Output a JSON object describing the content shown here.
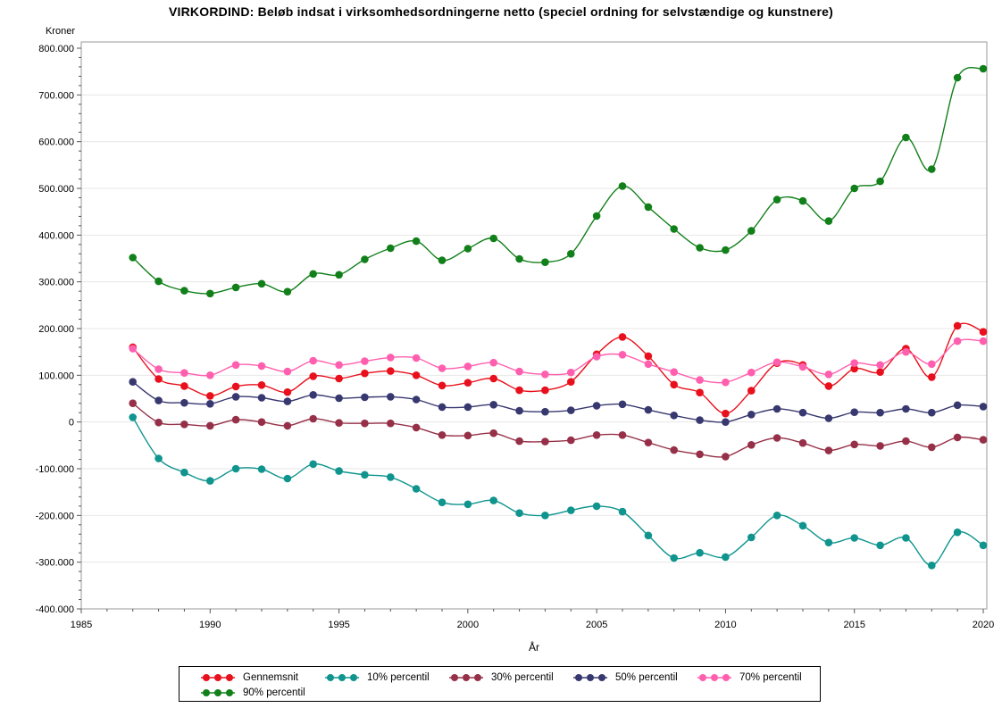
{
  "title": "VIRKORDIND:  Beløb indsat i virksomhedsordningerne netto (speciel ordning for selvstændige og kunstnere)",
  "chart_data": {
    "type": "line",
    "title": "VIRKORDIND:  Beløb indsat i virksomhedsordningerne netto (speciel ordning for selvstændige og kunstnere)",
    "ylabel": "Kroner",
    "xlabel": "År",
    "xlim": [
      1985,
      2020.15
    ],
    "ylim": [
      -400000,
      813000
    ],
    "x_major_ticks": [
      1985,
      1990,
      1995,
      2000,
      2005,
      2010,
      2015,
      2020
    ],
    "x_tick_labels": [
      "1985",
      "1990",
      "1995",
      "2000",
      "2005",
      "2010",
      "2015",
      "2020"
    ],
    "x_minor_step_years": 1,
    "y_major_step": 100000,
    "y_minor_step": 20000,
    "y_tick_labels": [
      "800.000",
      "700.000",
      "600.000",
      "500.000",
      "400.000",
      "300.000",
      "200.000",
      "100.000",
      "0",
      "-100.000",
      "-200.000",
      "-300.000",
      "-400.000"
    ],
    "grid": "horizontal-major",
    "legend_position": "bottom",
    "x": [
      1987,
      1988,
      1989,
      1990,
      1991,
      1992,
      1993,
      1994,
      1995,
      1996,
      1997,
      1998,
      1999,
      2000,
      2001,
      2002,
      2003,
      2004,
      2005,
      2006,
      2007,
      2008,
      2009,
      2010,
      2011,
      2012,
      2013,
      2014,
      2015,
      2016,
      2017,
      2018,
      2019,
      2020
    ],
    "series": [
      {
        "id": "gennemsnit",
        "name": "Gennemsnit",
        "color": "#e8101c",
        "values": [
          160000,
          92000,
          77000,
          56000,
          76000,
          79000,
          64000,
          98000,
          93000,
          104000,
          109000,
          100000,
          78000,
          84000,
          93000,
          68000,
          68000,
          86000,
          145000,
          182000,
          141000,
          80000,
          63000,
          18000,
          67000,
          126000,
          122000,
          77000,
          114000,
          107000,
          157000,
          96000,
          206000,
          193000
        ]
      },
      {
        "id": "p10",
        "name": "10% percentil",
        "color": "#0f948e",
        "values": [
          10000,
          -78000,
          -108000,
          -126000,
          -100000,
          -101000,
          -121000,
          -90000,
          -105000,
          -113000,
          -118000,
          -143000,
          -172000,
          -176000,
          -168000,
          -195000,
          -200000,
          -189000,
          -180000,
          -192000,
          -243000,
          -291000,
          -280000,
          -289000,
          -247000,
          -200000,
          -222000,
          -258000,
          -248000,
          -264000,
          -248000,
          -307000,
          -236000,
          -264000
        ]
      },
      {
        "id": "p30",
        "name": "30% percentil",
        "color": "#963048",
        "values": [
          40000,
          -1000,
          -5000,
          -8000,
          5000,
          0,
          -8000,
          7000,
          -2000,
          -3000,
          -3000,
          -12000,
          -28000,
          -29000,
          -24000,
          -41000,
          -42000,
          -39000,
          -28000,
          -28000,
          -44000,
          -60000,
          -69000,
          -74000,
          -49000,
          -34000,
          -45000,
          -61000,
          -48000,
          -51000,
          -41000,
          -54000,
          -33000,
          -38000
        ]
      },
      {
        "id": "p50",
        "name": "50% percentil",
        "color": "#383870",
        "values": [
          86000,
          46000,
          41000,
          39000,
          54000,
          52000,
          44000,
          58000,
          51000,
          53000,
          54000,
          48000,
          32000,
          32000,
          37000,
          24000,
          22000,
          25000,
          35000,
          38000,
          26000,
          14000,
          4000,
          0,
          16000,
          28000,
          20000,
          8000,
          21000,
          20000,
          28000,
          20000,
          36000,
          33000
        ]
      },
      {
        "id": "p70",
        "name": "70% percentil",
        "color": "#ff5fae",
        "values": [
          157000,
          113000,
          105000,
          100000,
          122000,
          120000,
          108000,
          131000,
          122000,
          130000,
          138000,
          137000,
          115000,
          119000,
          127000,
          108000,
          102000,
          106000,
          140000,
          144000,
          124000,
          107000,
          90000,
          85000,
          106000,
          128000,
          118000,
          102000,
          126000,
          122000,
          150000,
          124000,
          173000,
          173000
        ]
      },
      {
        "id": "p90",
        "name": "90% percentil",
        "color": "#12801a",
        "values": [
          352000,
          301000,
          281000,
          275000,
          288000,
          296000,
          279000,
          317000,
          315000,
          348000,
          372000,
          387000,
          346000,
          371000,
          393000,
          349000,
          342000,
          360000,
          441000,
          505000,
          460000,
          413000,
          373000,
          368000,
          409000,
          476000,
          473000,
          430000,
          500000,
          515000,
          609000,
          541000,
          737000,
          756000
        ]
      }
    ]
  }
}
